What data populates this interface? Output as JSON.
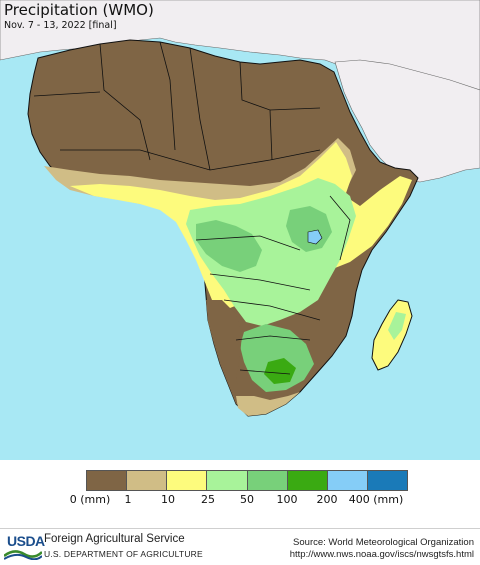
{
  "map": {
    "title": "Precipitation (WMO)",
    "subtitle": "Nov. 7 - 13, 2022 [final]",
    "colors": {
      "ocean": "#a8e8f4",
      "outside_land": "#f1eef1",
      "border": "#111111"
    }
  },
  "legend": {
    "unit_label": "0 (mm)",
    "bins": [
      {
        "label": "0 (mm)",
        "color": "#7f6545"
      },
      {
        "label": "1",
        "color": "#d0bd86"
      },
      {
        "label": "10",
        "color": "#fdfb7d"
      },
      {
        "label": "25",
        "color": "#a8f39a"
      },
      {
        "label": "50",
        "color": "#78d07a"
      },
      {
        "label": "100",
        "color": "#3aaa12"
      },
      {
        "label": "200",
        "color": "#85cdf7"
      },
      {
        "label": "400 (mm)",
        "color": "#1a7ab8"
      }
    ]
  },
  "footer": {
    "logo_text": "USDA",
    "agency": "Foreign Agricultural Service",
    "department": "U.S. DEPARTMENT OF AGRICULTURE",
    "source": "Source: World Meteorological Organization",
    "url": "http://www.nws.noaa.gov/iscs/nwsgtsfs.html"
  }
}
